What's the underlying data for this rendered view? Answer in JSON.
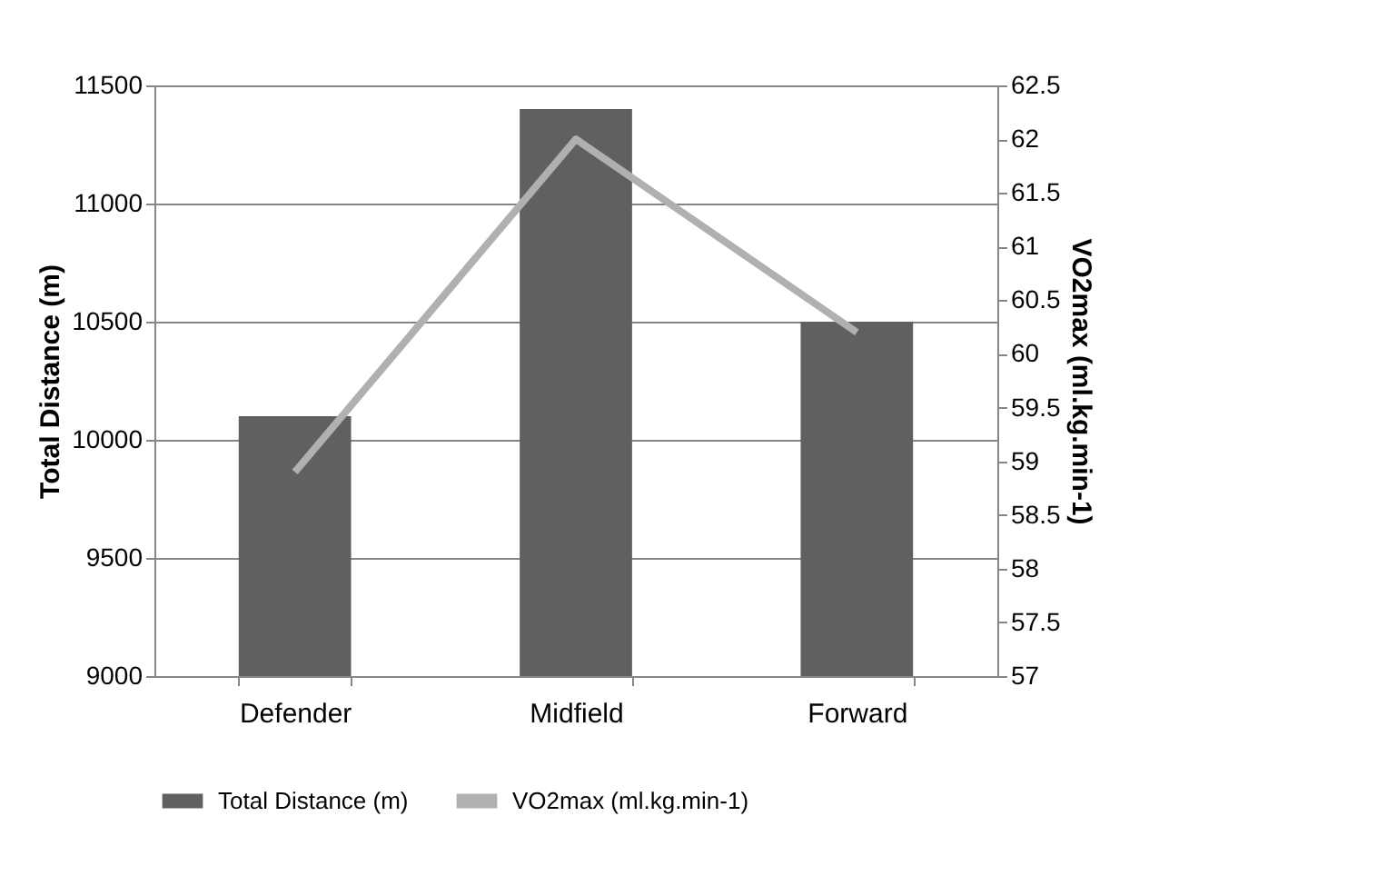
{
  "chart_data": {
    "type": "bar",
    "categories": [
      "Defender",
      "Midfield",
      "Forward"
    ],
    "ylabel": "Total Distance (m)",
    "y2label": "VO2max (ml.kg.min-1)",
    "ylim": [
      9000,
      11500
    ],
    "yticks": [
      9000,
      9500,
      10000,
      10500,
      11000,
      11500
    ],
    "y2lim": [
      57,
      62.5
    ],
    "y2ticks": [
      57,
      57.5,
      58,
      58.5,
      59,
      59.5,
      60,
      60.5,
      61,
      61.5,
      62,
      62.5
    ],
    "grid": "y",
    "legend": "bottom",
    "series": [
      {
        "name": "Total Distance (m)",
        "color": "#606060",
        "values": [
          10100,
          11400,
          10500
        ]
      },
      {
        "name": "VO2max (ml.kg.min-1)",
        "color": "#b0b0b0",
        "type": "line",
        "axis": "y2",
        "values": [
          58.9,
          62.0,
          60.2
        ]
      }
    ]
  }
}
